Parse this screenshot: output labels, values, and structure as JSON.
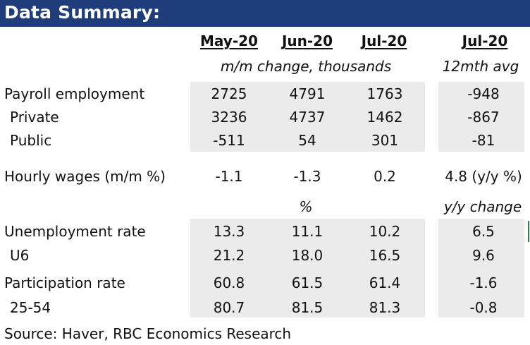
{
  "title": "Data Summary:",
  "headers": {
    "col1": "May-20",
    "col2": "Jun-20",
    "col3": "Jul-20",
    "col4": "Jul-20"
  },
  "subheaders": {
    "change_label": "m/m change, thousands",
    "avg_label": "12mth avg",
    "percent_label": "%",
    "yy_label": "y/y change"
  },
  "rows": {
    "payroll": {
      "label": "Payroll employment",
      "v1": "2725",
      "v2": "4791",
      "v3": "1763",
      "v4": "-948"
    },
    "private": {
      "label": "Private",
      "v1": "3236",
      "v2": "4737",
      "v3": "1462",
      "v4": "-867"
    },
    "public": {
      "label": "Public",
      "v1": "-511",
      "v2": "54",
      "v3": "301",
      "v4": "-81"
    },
    "wages": {
      "label": "Hourly wages (m/m %)",
      "v1": "-1.1",
      "v2": "-1.3",
      "v3": "0.2",
      "v4": "4.8 (y/y %)"
    },
    "unemp": {
      "label": "Unemployment rate",
      "v1": "13.3",
      "v2": "11.1",
      "v3": "10.2",
      "v4": "6.5"
    },
    "u6": {
      "label": "U6",
      "v1": "21.2",
      "v2": "18.0",
      "v3": "16.5",
      "v4": "9.6"
    },
    "particip": {
      "label": "Participation rate",
      "v1": "60.8",
      "v2": "61.5",
      "v3": "61.4",
      "v4": "-1.6"
    },
    "age2554": {
      "label": "25-54",
      "v1": "80.7",
      "v2": "81.5",
      "v3": "81.3",
      "v4": "-0.8"
    }
  },
  "source": "Source:  Haver, RBC Economics Research"
}
